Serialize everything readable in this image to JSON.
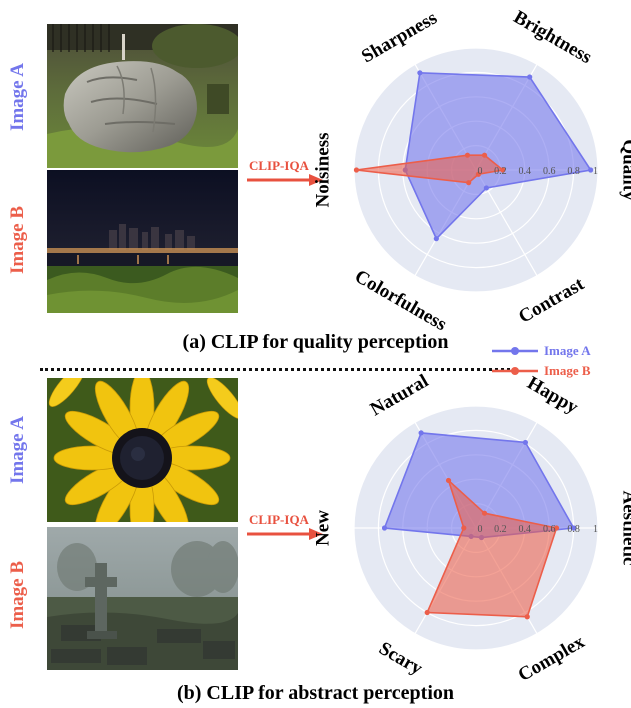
{
  "panel_a": {
    "image_a_label": "Image A",
    "image_b_label": "Image B",
    "arrow_label": "CLIP-IQA",
    "caption": "(a) CLIP for quality perception"
  },
  "panel_b": {
    "image_a_label": "Image A",
    "image_b_label": "Image B",
    "arrow_label": "CLIP-IQA",
    "caption": "(b) CLIP for abstract perception"
  },
  "legend": {
    "series_a": "Image A",
    "series_b": "Image B"
  },
  "colors": {
    "image_a": "#7376ec",
    "image_b": "#ec5e4a",
    "arrow": "#e8513f",
    "polar_bg": "#e5e9f3"
  },
  "chart_data": [
    {
      "type": "radar",
      "axes": [
        "Quality",
        "Brightness",
        "Sharpness",
        "Noisiness",
        "Colorfulness",
        "Contrast"
      ],
      "radial_ticks": [
        "0",
        "0.2",
        "0.4",
        "0.6",
        "0.8",
        "1"
      ],
      "range": [
        0,
        1
      ],
      "series": [
        {
          "name": "Image A",
          "values": [
            0.94,
            0.88,
            0.92,
            0.58,
            0.65,
            0.17
          ]
        },
        {
          "name": "Image B",
          "values": [
            0.22,
            0.14,
            0.14,
            0.98,
            0.12,
            0.04
          ]
        }
      ]
    },
    {
      "type": "radar",
      "axes": [
        "Aesthetic",
        "Happy",
        "Natural",
        "New",
        "Scary",
        "Complex"
      ],
      "radial_ticks": [
        "0",
        "0.2",
        "0.4",
        "0.6",
        "0.8",
        "1"
      ],
      "range": [
        0,
        1
      ],
      "series": [
        {
          "name": "Image A",
          "values": [
            0.8,
            0.81,
            0.9,
            0.75,
            0.08,
            0.09
          ]
        },
        {
          "name": "Image B",
          "values": [
            0.66,
            0.14,
            0.45,
            0.1,
            0.8,
            0.84
          ]
        }
      ]
    }
  ]
}
